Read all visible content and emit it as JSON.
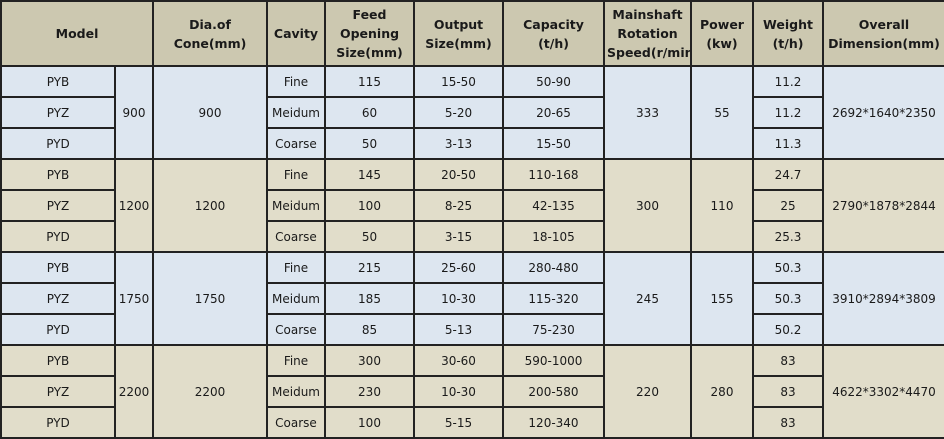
{
  "headers": {
    "model": "Model",
    "dia": "Dia.of Cone(mm)",
    "cavity": "Cavity",
    "feed": [
      "Feed Opening",
      "Size(mm)"
    ],
    "output": [
      "Output",
      "Size(mm)"
    ],
    "capacity": [
      "Capacity",
      "(t/h)"
    ],
    "speed": [
      "Mainshaft",
      "Rotation",
      "Speed(r/min)"
    ],
    "power": [
      "Power",
      "(kw)"
    ],
    "weight": [
      "Weight",
      "(t/h)"
    ],
    "dimension": [
      "Overall",
      "Dimension(mm)"
    ]
  },
  "groups": [
    {
      "size": "900",
      "dia": "900",
      "speed": "333",
      "power": "55",
      "dimension": "2692*1640*2350",
      "rows": [
        {
          "model": "PYB",
          "cavity": "Fine",
          "feed": "115",
          "output": "15-50",
          "capacity": "50-90",
          "weight": "11.2"
        },
        {
          "model": "PYZ",
          "cavity": "Meidum",
          "feed": "60",
          "output": "5-20",
          "capacity": "20-65",
          "weight": "11.2"
        },
        {
          "model": "PYD",
          "cavity": "Coarse",
          "feed": "50",
          "output": "3-13",
          "capacity": "15-50",
          "weight": "11.3"
        }
      ]
    },
    {
      "size": "1200",
      "dia": "1200",
      "speed": "300",
      "power": "110",
      "dimension": "2790*1878*2844",
      "rows": [
        {
          "model": "PYB",
          "cavity": "Fine",
          "feed": "145",
          "output": "20-50",
          "capacity": "110-168",
          "weight": "24.7"
        },
        {
          "model": "PYZ",
          "cavity": "Meidum",
          "feed": "100",
          "output": "8-25",
          "capacity": "42-135",
          "weight": "25"
        },
        {
          "model": "PYD",
          "cavity": "Coarse",
          "feed": "50",
          "output": "3-15",
          "capacity": "18-105",
          "weight": "25.3"
        }
      ]
    },
    {
      "size": "1750",
      "dia": "1750",
      "speed": "245",
      "power": "155",
      "dimension": "3910*2894*3809",
      "rows": [
        {
          "model": "PYB",
          "cavity": "Fine",
          "feed": "215",
          "output": "25-60",
          "capacity": "280-480",
          "weight": "50.3"
        },
        {
          "model": "PYZ",
          "cavity": "Meidum",
          "feed": "185",
          "output": "10-30",
          "capacity": "115-320",
          "weight": "50.3"
        },
        {
          "model": "PYD",
          "cavity": "Coarse",
          "feed": "85",
          "output": "5-13",
          "capacity": "75-230",
          "weight": "50.2"
        }
      ]
    },
    {
      "size": "2200",
      "dia": "2200",
      "speed": "220",
      "power": "280",
      "dimension": "4622*3302*4470",
      "rows": [
        {
          "model": "PYB",
          "cavity": "Fine",
          "feed": "300",
          "output": "30-60",
          "capacity": "590-1000",
          "weight": "83"
        },
        {
          "model": "PYZ",
          "cavity": "Meidum",
          "feed": "230",
          "output": "10-30",
          "capacity": "200-580",
          "weight": "83"
        },
        {
          "model": "PYD",
          "cavity": "Coarse",
          "feed": "100",
          "output": "5-15",
          "capacity": "120-340",
          "weight": "83"
        }
      ]
    }
  ]
}
